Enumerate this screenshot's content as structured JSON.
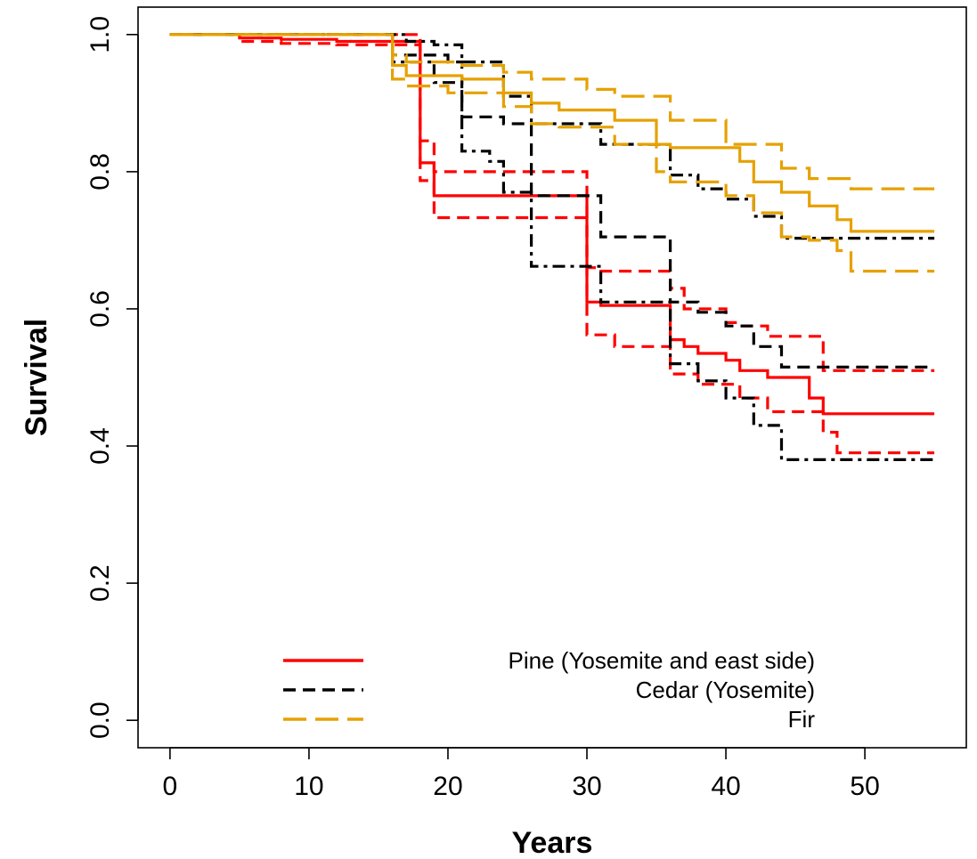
{
  "chart_data": {
    "type": "line",
    "title": "",
    "xlabel": "Years",
    "ylabel": "Survival",
    "xlim": [
      -2.3,
      57.3
    ],
    "ylim": [
      -0.04,
      1.04
    ],
    "xticks": [
      0,
      10,
      20,
      30,
      40,
      50
    ],
    "yticks": [
      0.0,
      0.2,
      0.4,
      0.6,
      0.8,
      1.0
    ],
    "xtick_labels": [
      "0",
      "10",
      "20",
      "30",
      "40",
      "50"
    ],
    "ytick_labels": [
      "0.0",
      "0.2",
      "0.4",
      "0.6",
      "0.8",
      "1.0"
    ],
    "grid": false,
    "legend_position": "bottom-center",
    "legend": [
      {
        "label": "Pine (Yosemite and east side)",
        "color": "#ff0000",
        "dash": "solid"
      },
      {
        "label": "Cedar (Yosemite)",
        "color": "#000000",
        "dash": "dashed"
      },
      {
        "label": "Fir",
        "color": "#e6a100",
        "dash": "longdash"
      }
    ],
    "series": [
      {
        "name": "Pine (Yosemite and east side)",
        "role": "estimate",
        "color": "#ff0000",
        "dash": "solid",
        "step": true,
        "x": [
          0,
          5,
          8,
          12,
          18,
          19,
          30,
          31,
          36,
          37,
          38,
          40,
          41,
          43,
          46,
          47,
          55
        ],
        "y": [
          1.0,
          0.995,
          0.993,
          0.99,
          0.813,
          0.765,
          0.61,
          0.605,
          0.555,
          0.545,
          0.535,
          0.525,
          0.51,
          0.5,
          0.47,
          0.447,
          0.447
        ]
      },
      {
        "name": "Pine (Yosemite and east side)",
        "role": "ci-upper",
        "color": "#ff0000",
        "dash": "dashed",
        "step": true,
        "x": [
          0,
          18,
          19,
          30,
          31,
          36,
          37,
          40,
          41,
          43,
          47,
          55
        ],
        "y": [
          1.0,
          0.845,
          0.8,
          0.66,
          0.655,
          0.63,
          0.6,
          0.58,
          0.575,
          0.56,
          0.51,
          0.51
        ]
      },
      {
        "name": "Pine (Yosemite and east side)",
        "role": "ci-lower",
        "color": "#ff0000",
        "dash": "dashed",
        "step": true,
        "x": [
          0,
          5,
          8,
          12,
          18,
          19,
          30,
          32,
          36,
          38,
          41,
          43,
          47,
          48,
          55
        ],
        "y": [
          1.0,
          0.99,
          0.987,
          0.985,
          0.787,
          0.733,
          0.562,
          0.545,
          0.505,
          0.49,
          0.47,
          0.45,
          0.42,
          0.39,
          0.39
        ]
      },
      {
        "name": "Cedar (Yosemite)",
        "role": "estimate",
        "color": "#000000",
        "dash": "dashed",
        "step": true,
        "x": [
          0,
          16,
          20,
          21,
          24,
          26,
          31,
          36,
          38,
          40,
          42,
          44,
          55
        ],
        "y": [
          1.0,
          0.97,
          0.96,
          0.88,
          0.87,
          0.765,
          0.705,
          0.61,
          0.595,
          0.575,
          0.545,
          0.515,
          0.515
        ]
      },
      {
        "name": "Cedar (Yosemite)",
        "role": "ci-upper",
        "color": "#000000",
        "dash": "dashdot",
        "step": true,
        "x": [
          0,
          17,
          19,
          21,
          24,
          26,
          31,
          36,
          38,
          40,
          42,
          44,
          55
        ],
        "y": [
          1.0,
          0.99,
          0.985,
          0.96,
          0.91,
          0.87,
          0.84,
          0.795,
          0.775,
          0.76,
          0.735,
          0.703,
          0.703
        ]
      },
      {
        "name": "Cedar (Yosemite)",
        "role": "ci-lower",
        "color": "#000000",
        "dash": "dashdot",
        "step": true,
        "x": [
          0,
          16,
          19,
          21,
          23,
          24,
          26,
          31,
          36,
          38,
          40,
          42,
          44,
          55
        ],
        "y": [
          1.0,
          0.96,
          0.93,
          0.83,
          0.815,
          0.77,
          0.662,
          0.61,
          0.52,
          0.495,
          0.47,
          0.43,
          0.38,
          0.38
        ]
      },
      {
        "name": "Fir",
        "role": "estimate",
        "color": "#e6a100",
        "dash": "solid",
        "step": true,
        "x": [
          0,
          16,
          17,
          21,
          24,
          26,
          28,
          32,
          35,
          36,
          41,
          42,
          44,
          46,
          48,
          49,
          55
        ],
        "y": [
          1.0,
          0.955,
          0.94,
          0.935,
          0.915,
          0.9,
          0.89,
          0.875,
          0.84,
          0.835,
          0.815,
          0.785,
          0.77,
          0.75,
          0.73,
          0.713,
          0.713
        ]
      },
      {
        "name": "Fir",
        "role": "ci-upper",
        "color": "#e6a100",
        "dash": "longdash",
        "step": true,
        "x": [
          0,
          16,
          17,
          21,
          24,
          26,
          30,
          32,
          36,
          40,
          44,
          46,
          49,
          55
        ],
        "y": [
          1.0,
          0.97,
          0.96,
          0.955,
          0.945,
          0.935,
          0.92,
          0.91,
          0.875,
          0.84,
          0.805,
          0.79,
          0.775,
          0.775
        ]
      },
      {
        "name": "Fir",
        "role": "ci-lower",
        "color": "#e6a100",
        "dash": "longdash",
        "step": true,
        "x": [
          0,
          16,
          17,
          20,
          24,
          26,
          28,
          32,
          35,
          36,
          40,
          42,
          44,
          46,
          48,
          49,
          55
        ],
        "y": [
          1.0,
          0.935,
          0.925,
          0.915,
          0.895,
          0.87,
          0.865,
          0.84,
          0.8,
          0.785,
          0.765,
          0.74,
          0.705,
          0.7,
          0.685,
          0.655,
          0.655
        ]
      }
    ]
  }
}
